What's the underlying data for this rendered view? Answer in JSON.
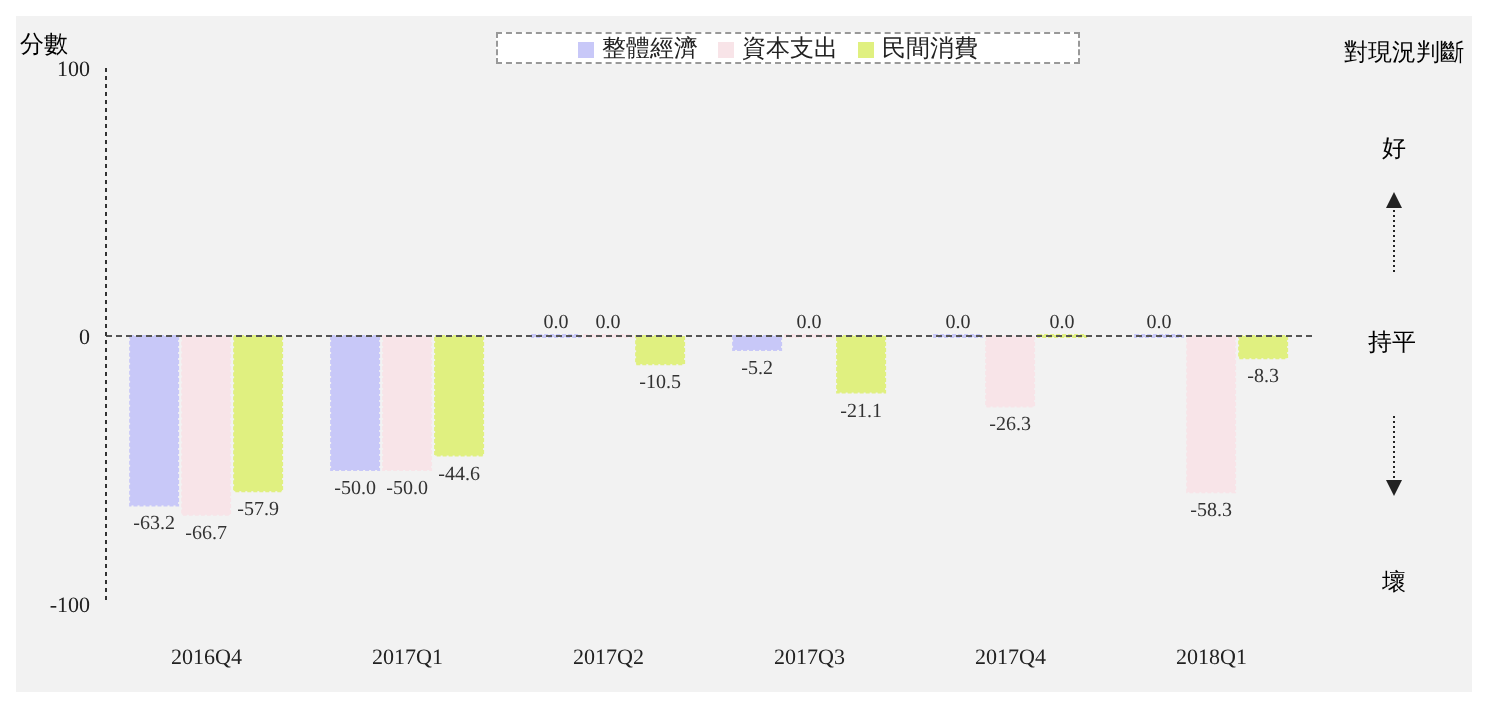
{
  "chart_data": {
    "type": "bar",
    "ylabel": "分數",
    "categories": [
      "2016Q4",
      "2017Q1",
      "2017Q2",
      "2017Q3",
      "2017Q4",
      "2018Q1"
    ],
    "series": [
      {
        "name": "整體經濟",
        "color": "#c8c8f8",
        "values": [
          -63.2,
          -50.0,
          0.0,
          -5.2,
          0.0,
          0.0
        ],
        "value_labels": [
          "-63.2",
          "-50.0",
          "0.0",
          "-5.2",
          "0.0",
          "0.0"
        ]
      },
      {
        "name": "資本支出",
        "color": "#f8e4e8",
        "values": [
          -66.7,
          -50.0,
          0.0,
          0.0,
          -26.3,
          -58.3
        ],
        "value_labels": [
          "-66.7",
          "-50.0",
          "0.0",
          "0.0",
          "-26.3",
          "-58.3"
        ]
      },
      {
        "name": "民間消費",
        "color": "#e0f080",
        "values": [
          -57.9,
          -44.6,
          -10.5,
          -21.1,
          0.0,
          -8.3
        ],
        "value_labels": [
          "-57.9",
          "-44.6",
          "-10.5",
          "-21.1",
          "0.0",
          "-8.3"
        ]
      }
    ],
    "ylim": [
      -100,
      100
    ],
    "yticks": [
      -100,
      0,
      100
    ],
    "grid": false,
    "legend": "top",
    "ref_lines": [
      {
        "axis": "y",
        "value": 0,
        "color": "#555555",
        "line_style": "dashed"
      }
    ],
    "annotations": [
      "對現況判斷",
      "好",
      "持平",
      "壞"
    ]
  }
}
